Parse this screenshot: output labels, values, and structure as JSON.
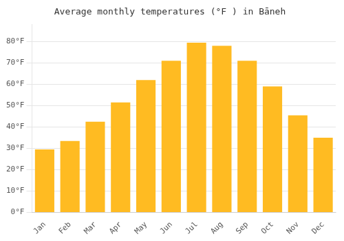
{
  "chart_data": {
    "type": "bar",
    "title": "Average monthly temperatures (°F ) in Bāneh",
    "categories": [
      "Jan",
      "Feb",
      "Mar",
      "Apr",
      "May",
      "Jun",
      "Jul",
      "Aug",
      "Sep",
      "Oct",
      "Nov",
      "Dec"
    ],
    "values": [
      29.5,
      33.5,
      42.5,
      51.5,
      62,
      71,
      79.5,
      78,
      71,
      59,
      45.5,
      35
    ],
    "color": "#FFBB22",
    "ylim": [
      0,
      88
    ],
    "yticks": [
      {
        "value": 0,
        "label": "0°F"
      },
      {
        "value": 10,
        "label": "10°F"
      },
      {
        "value": 20,
        "label": "20°F"
      },
      {
        "value": 30,
        "label": "30°F"
      },
      {
        "value": 40,
        "label": "40°F"
      },
      {
        "value": 50,
        "label": "50°F"
      },
      {
        "value": 60,
        "label": "60°F"
      },
      {
        "value": 70,
        "label": "70°F"
      },
      {
        "value": 80,
        "label": "80°F"
      }
    ],
    "grid": true
  }
}
